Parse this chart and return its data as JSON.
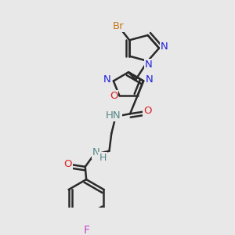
{
  "bg_color": "#e8e8e8",
  "bond_color": "#2a2a2a",
  "bond_width": 1.8,
  "colors": {
    "Br": "#c87820",
    "F": "#cc44cc",
    "N": "#2222dd",
    "O": "#dd2222",
    "NH": "#558888",
    "C": "#2a2a2a"
  }
}
